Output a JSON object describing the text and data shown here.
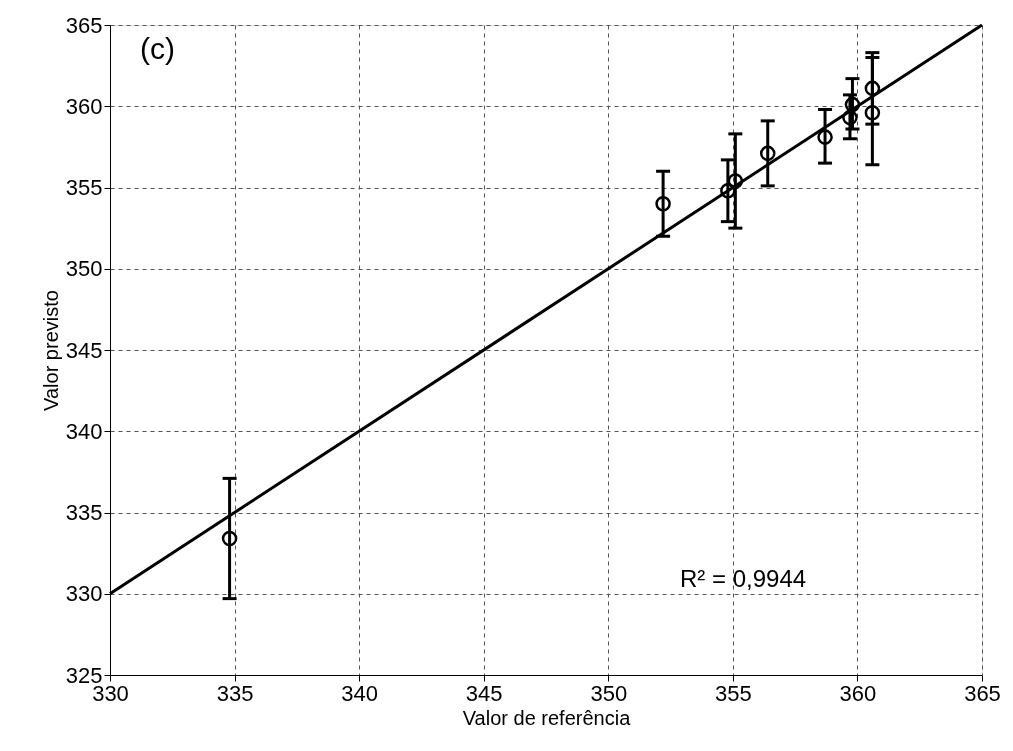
{
  "chart_data": {
    "type": "scatter",
    "xlabel": "Valor de referência",
    "ylabel": "Valor previsto",
    "xlim": [
      330,
      365
    ],
    "xticks": [
      330,
      335,
      340,
      345,
      350,
      355,
      360,
      365
    ],
    "ylim": [
      325,
      365
    ],
    "yticks": [
      325,
      330,
      335,
      340,
      345,
      350,
      355,
      360,
      365
    ],
    "grid": true,
    "annotations": [
      "(c)",
      "R² = 0,9944"
    ],
    "series": [
      {
        "color": "#000000",
        "marker": "circle",
        "x": [
          334.8,
          352.2,
          354.8,
          355.1,
          356.4,
          358.7,
          359.7,
          359.8,
          360.6,
          360.6
        ],
        "values": [
          333.4,
          354.0,
          354.8,
          355.4,
          357.1,
          358.1,
          359.3,
          360.1,
          359.6,
          361.1
        ],
        "errors": [
          [
            329.7,
            337.1
          ],
          [
            352.0,
            356.0
          ],
          [
            352.9,
            356.7
          ],
          [
            352.5,
            358.3
          ],
          [
            355.1,
            359.1
          ],
          [
            356.5,
            359.8
          ],
          [
            358.0,
            360.7
          ],
          [
            358.6,
            361.7
          ],
          [
            356.4,
            363.0
          ],
          [
            358.9,
            363.3
          ]
        ]
      },
      {
        "type": "line",
        "color": "#000000",
        "line_style": "solid",
        "x": [
          330,
          365
        ],
        "values": [
          330,
          365
        ]
      }
    ]
  }
}
